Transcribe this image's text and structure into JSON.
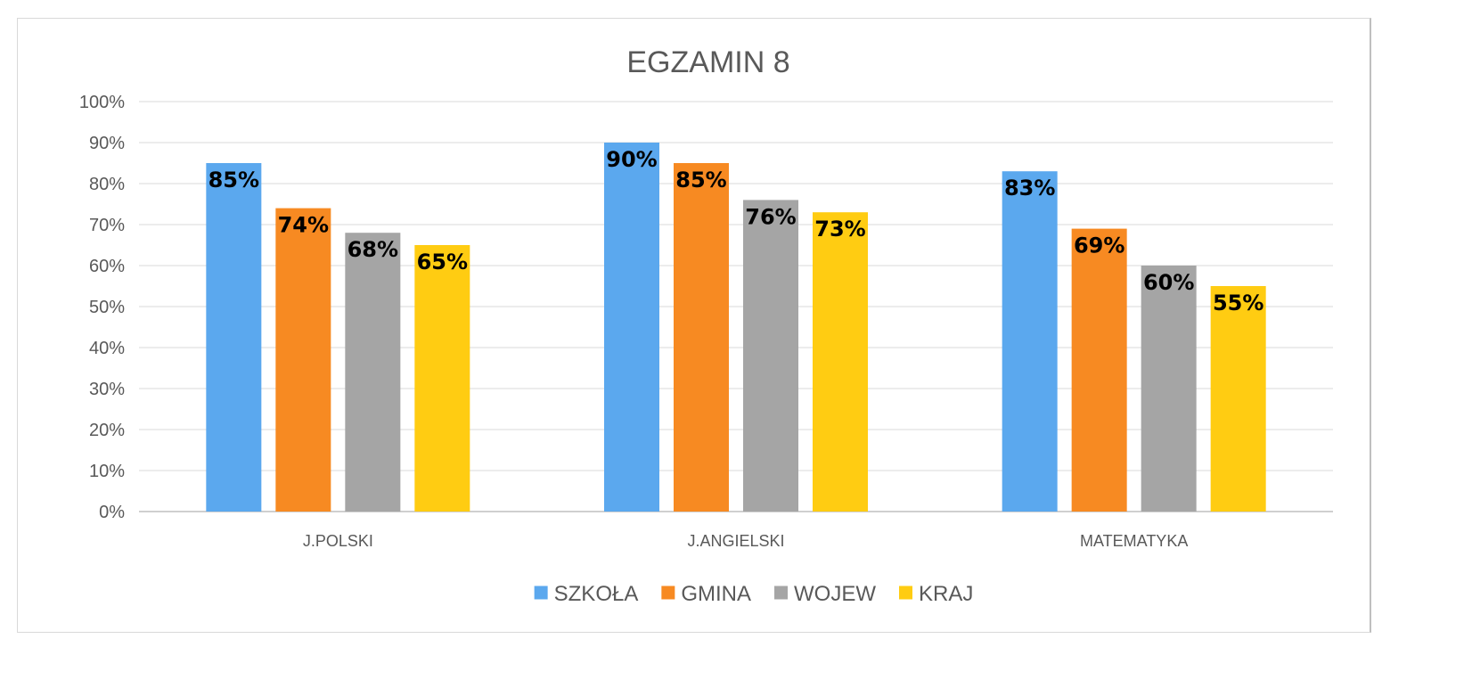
{
  "chart_data": {
    "type": "bar",
    "title": "EGZAMIN 8",
    "xlabel": "",
    "ylabel": "",
    "categories": [
      "J.POLSKI",
      "J.ANGIELSKI",
      "MATEMATYKA"
    ],
    "series": [
      {
        "name": "SZKOŁA",
        "color": "#5ba8ee",
        "values": [
          85,
          90,
          83
        ]
      },
      {
        "name": "GMINA",
        "color": "#f78a22",
        "values": [
          74,
          85,
          69
        ]
      },
      {
        "name": "WOJEW",
        "color": "#a5a5a5",
        "values": [
          68,
          76,
          60
        ]
      },
      {
        "name": "KRAJ",
        "color": "#ffcc12",
        "values": [
          65,
          73,
          55
        ]
      }
    ],
    "ylim": [
      0,
      100
    ],
    "yticks": [
      0,
      10,
      20,
      30,
      40,
      50,
      60,
      70,
      80,
      90,
      100
    ],
    "tick_format": "percent",
    "data_labels": true,
    "grid": true,
    "legend_position": "bottom"
  }
}
